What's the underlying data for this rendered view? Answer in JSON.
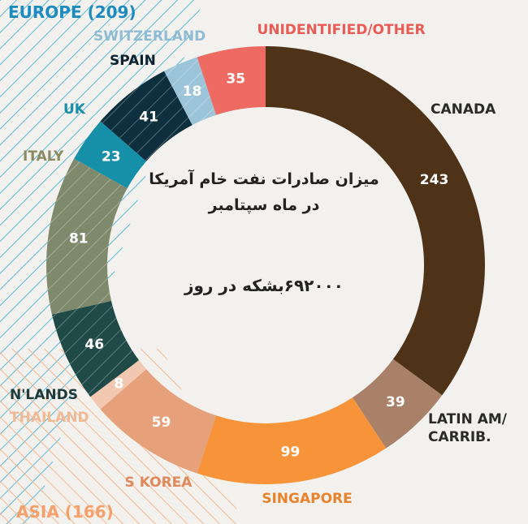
{
  "chart_data": {
    "type": "pie",
    "donut": true,
    "title": "میزان صادرات نفت خام آمریکا در ماه سپتامبر",
    "title_line1": "میزان صادرات نفت خام آمریکا",
    "title_line2": "در ماه سپتامبر",
    "total_label": "۶۹۲۰۰۰بشکه در روز",
    "groups": [
      {
        "label": "EUROPE (209)",
        "color": "#1d8bbf"
      },
      {
        "label": "ASIA (166)",
        "color": "#f5a06a"
      }
    ],
    "slices": [
      {
        "label": "CANADA",
        "value": 243,
        "color": "#4e3318",
        "label_color": "#2a2a2a"
      },
      {
        "label": "LATIN AM/ CARRIB.",
        "value": 39,
        "color": "#a98068",
        "label_color": "#2a2a2a"
      },
      {
        "label": "SINGAPORE",
        "value": 99,
        "color": "#f7943a",
        "label_color": "#e8832c"
      },
      {
        "label": "S KOREA",
        "value": 59,
        "color": "#e6a07a",
        "label_color": "#e08a5c"
      },
      {
        "label": "THAILAND",
        "value": 8,
        "color": "#f2c9b0",
        "label_color": "#efb996"
      },
      {
        "label": "N'LANDS",
        "value": 46,
        "color": "#1f4a48",
        "label_color": "#1f3a3a"
      },
      {
        "label": "ITALY",
        "value": 81,
        "color": "#7f8a6c",
        "label_color": "#8a8a62"
      },
      {
        "label": "UK",
        "value": 23,
        "color": "#168fa8",
        "label_color": "#168fa8"
      },
      {
        "label": "SPAIN",
        "value": 41,
        "color": "#0e2f3e",
        "label_color": "#0e2230"
      },
      {
        "label": "SWITZERLAND",
        "value": 18,
        "color": "#9cc4d8",
        "label_color": "#8fbcd2"
      },
      {
        "label": "UNIDENTIFIED/OTHER",
        "value": 35,
        "color": "#ee6b64",
        "label_color": "#e95b55"
      }
    ]
  }
}
